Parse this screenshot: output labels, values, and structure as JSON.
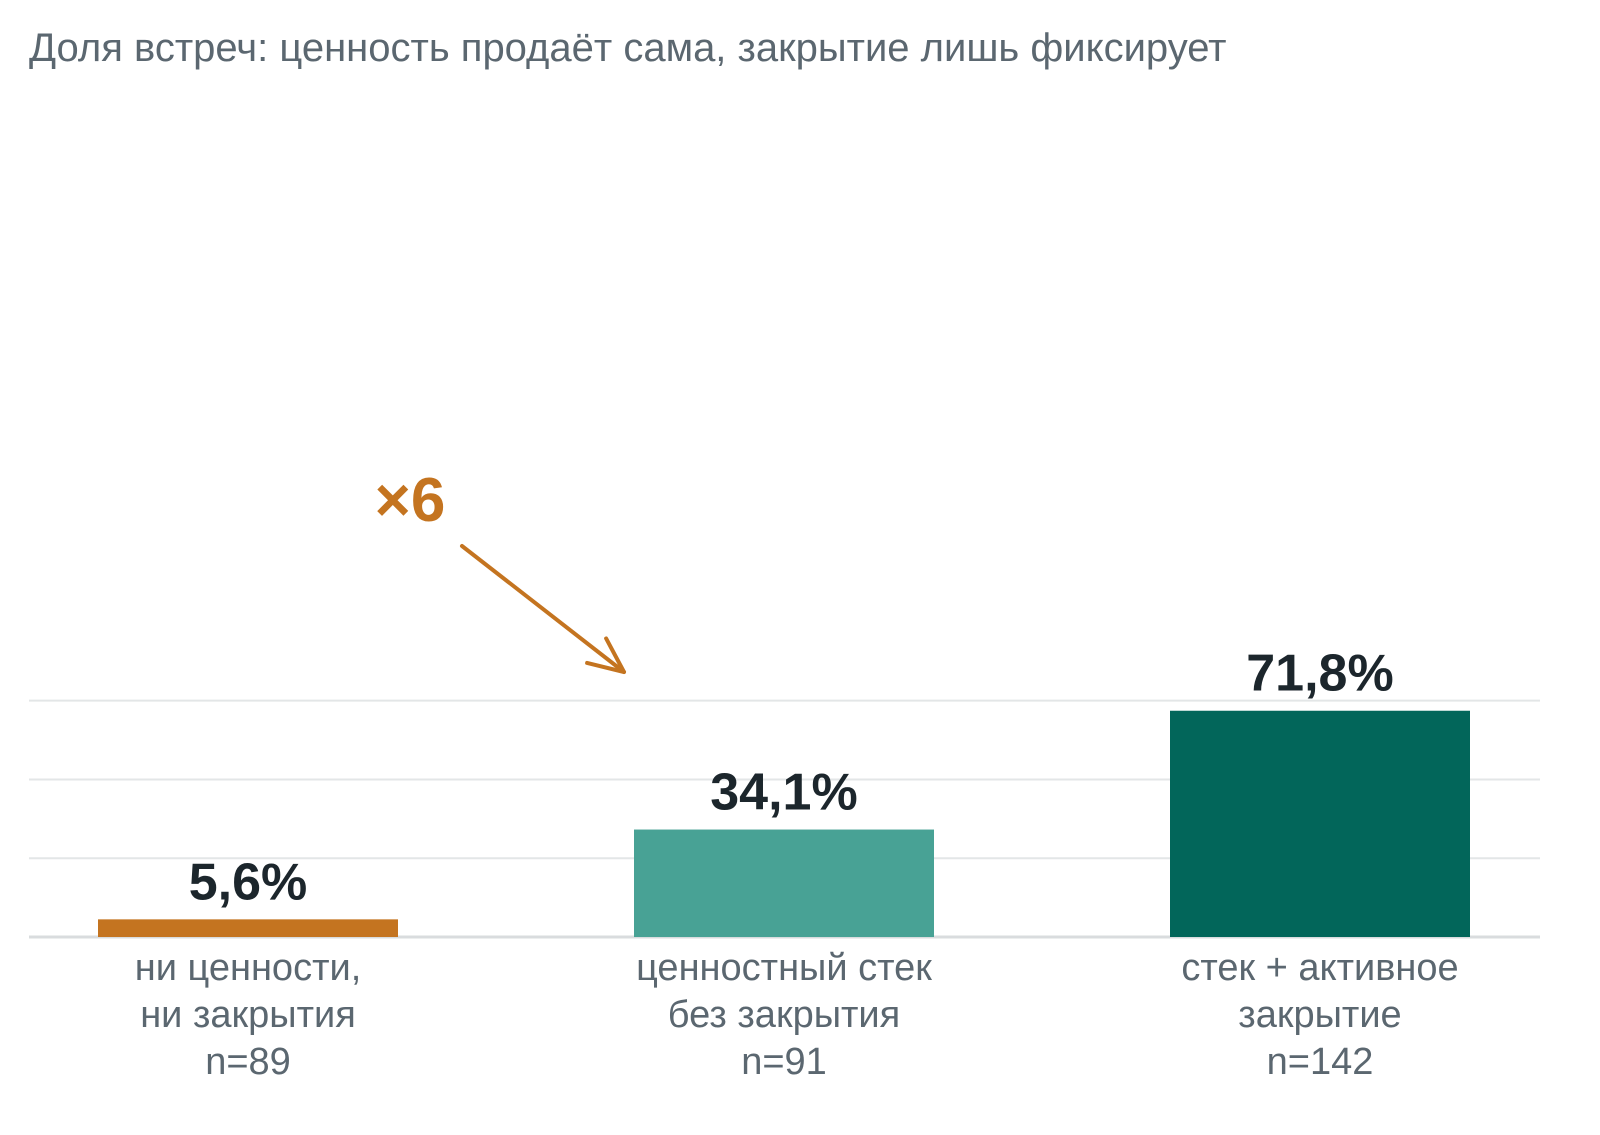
{
  "chart_data": {
    "type": "bar",
    "title": "Доля встреч: ценность продаёт сама, закрытие лишь фиксирует",
    "xlabel": "",
    "ylabel": "",
    "ylim": [
      0,
      75
    ],
    "grid": true,
    "yticks": [
      0,
      25,
      50,
      75
    ],
    "categories": [
      [
        "ни ценности,",
        "ни закрытия",
        "n=89"
      ],
      [
        "ценностный стек",
        "без закрытия",
        "n=91"
      ],
      [
        "стек + активное",
        "закрытие",
        "n=142"
      ]
    ],
    "values": [
      5.6,
      34.1,
      71.8
    ],
    "value_labels": [
      "5,6%",
      "34,1%",
      "71,8%"
    ],
    "bar_colors": [
      "#c47420",
      "#48a295",
      "#02665a"
    ],
    "annotation": {
      "text": "×6",
      "color": "#c47420",
      "points_to_category": 1
    }
  },
  "colors": {
    "title": "#5b6770",
    "value_label": "#1c262c",
    "category_label": "#5b6770",
    "grid": "#e3e6e7",
    "baseline": "#d9dcde"
  }
}
